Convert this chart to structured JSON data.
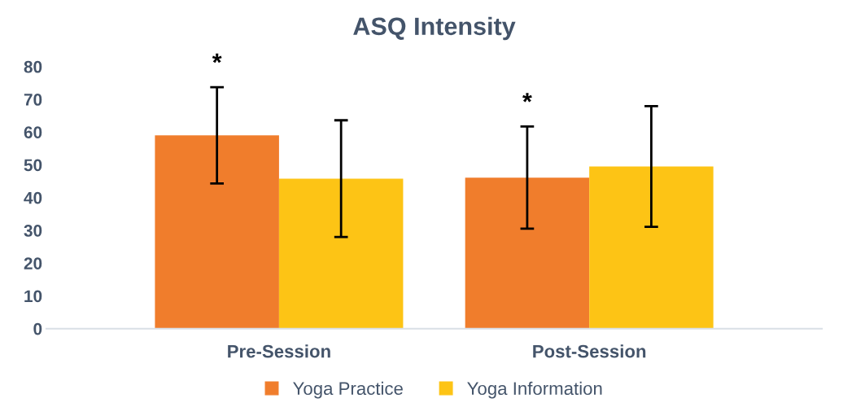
{
  "chart_data": {
    "type": "bar",
    "title": "ASQ Intensity",
    "categories": [
      "Pre-Session",
      "Post-Session"
    ],
    "series": [
      {
        "name": "Yoga Practice",
        "color": "#f07d2c",
        "values": [
          59.0,
          46.1
        ],
        "errors": [
          14.7,
          15.6
        ]
      },
      {
        "name": "Yoga Information",
        "color": "#fdc415",
        "values": [
          45.8,
          49.5
        ],
        "errors": [
          17.8,
          18.4
        ]
      }
    ],
    "ylim": [
      0,
      80
    ],
    "yticks": [
      0,
      10,
      20,
      30,
      40,
      50,
      60,
      70,
      80
    ],
    "annotations": [
      "*",
      "*"
    ],
    "legend": "bottom",
    "grid": false
  }
}
